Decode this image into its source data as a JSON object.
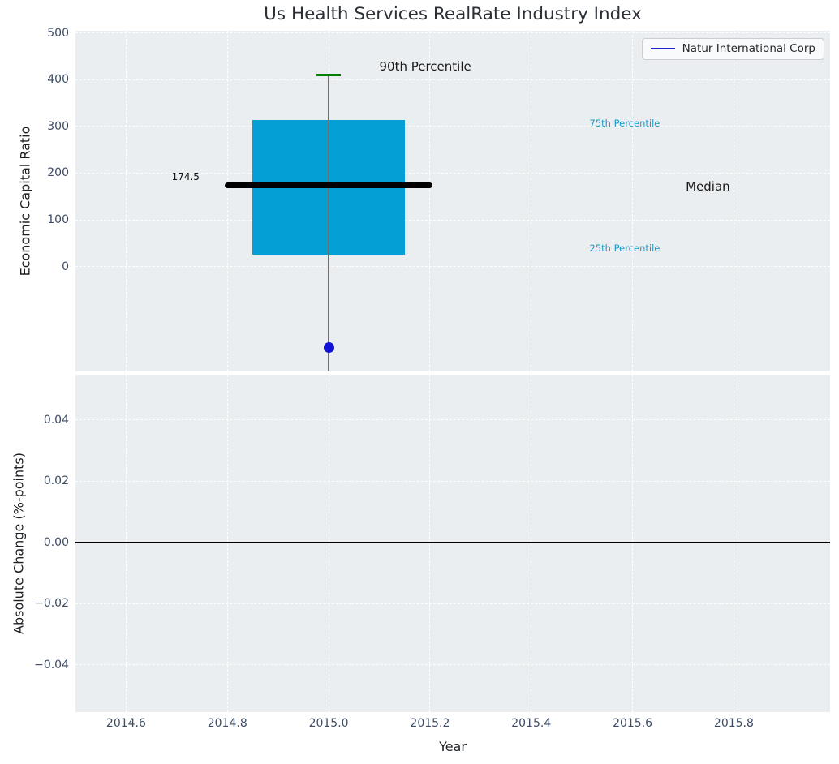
{
  "title": "Us Health Services RealRate Industry Index",
  "xlabel": "Year",
  "legend": {
    "label": "Natur International Corp",
    "line_color": "#2222cc"
  },
  "colors": {
    "axes_background": "#ebeef0",
    "grid": "rgba(255,255,255,0.9)",
    "box_fill": "#049fd4",
    "whisker": "#6f6f6f",
    "cap_90th": "#007f00",
    "median_line": "#000000",
    "company_dot": "#1212d6",
    "tick_label": "#3d4c63",
    "percentile_text": "#189ac8",
    "zero_line": "#000000"
  },
  "chart_data": [
    {
      "type": "boxplot",
      "subplot": "top",
      "title": "Us Health Services RealRate Industry Index",
      "ylabel": "Economic Capital Ratio",
      "xlabel": "Year",
      "xlim": [
        2014.5,
        2015.99
      ],
      "ylim": [
        -225,
        505
      ],
      "yticks": [
        0,
        100,
        200,
        300,
        400,
        500
      ],
      "xticks": [
        2014.6,
        2014.8,
        2015.0,
        2015.2,
        2015.4,
        2015.6,
        2015.8
      ],
      "grid": "white-dashed",
      "x_center": 2015.0,
      "box": {
        "p25": 25,
        "median": 174.5,
        "p75": 314,
        "p90": 410,
        "whisker_low": null,
        "whisker_low_note": "lower whisker extends below visible axis range",
        "box_x_range": [
          2014.85,
          2015.15
        ],
        "median_x_range": [
          2014.795,
          2015.205
        ],
        "cap_x_range": [
          2014.976,
          2015.024
        ]
      },
      "company_point": {
        "label": "Natur International Corp",
        "x": 2015.0,
        "y": -174
      },
      "legend_entries": [
        "Natur International Corp"
      ],
      "legend_position": "upper right",
      "annotations": [
        {
          "text": "90th Percentile",
          "x": 2015.1,
          "y": 428,
          "size": 15,
          "color": "#1a1a1a"
        },
        {
          "text": "75th Percentile",
          "x": 2015.515,
          "y": 306,
          "size": 11.5,
          "color": "#189ac8"
        },
        {
          "text": "Median",
          "x": 2015.705,
          "y": 172,
          "size": 15,
          "color": "#1a1a1a"
        },
        {
          "text": "25th Percentile",
          "x": 2015.515,
          "y": 40,
          "size": 11.5,
          "color": "#189ac8"
        },
        {
          "text": "174.5",
          "x": 2014.69,
          "y": 193,
          "size": 12,
          "color": "#111111"
        }
      ]
    },
    {
      "type": "line",
      "subplot": "bottom",
      "ylabel": "Absolute Change (%-points)",
      "xlabel": "Year",
      "xlim": [
        2014.5,
        2015.99
      ],
      "ylim": [
        -0.0554,
        0.0548
      ],
      "yticks": [
        -0.04,
        -0.02,
        0.0,
        0.02,
        0.04
      ],
      "xticks": [
        2014.6,
        2014.8,
        2015.0,
        2015.2,
        2015.4,
        2015.6,
        2015.8
      ],
      "grid": "white-dashed",
      "zero_line_y": 0.0,
      "series": []
    }
  ]
}
